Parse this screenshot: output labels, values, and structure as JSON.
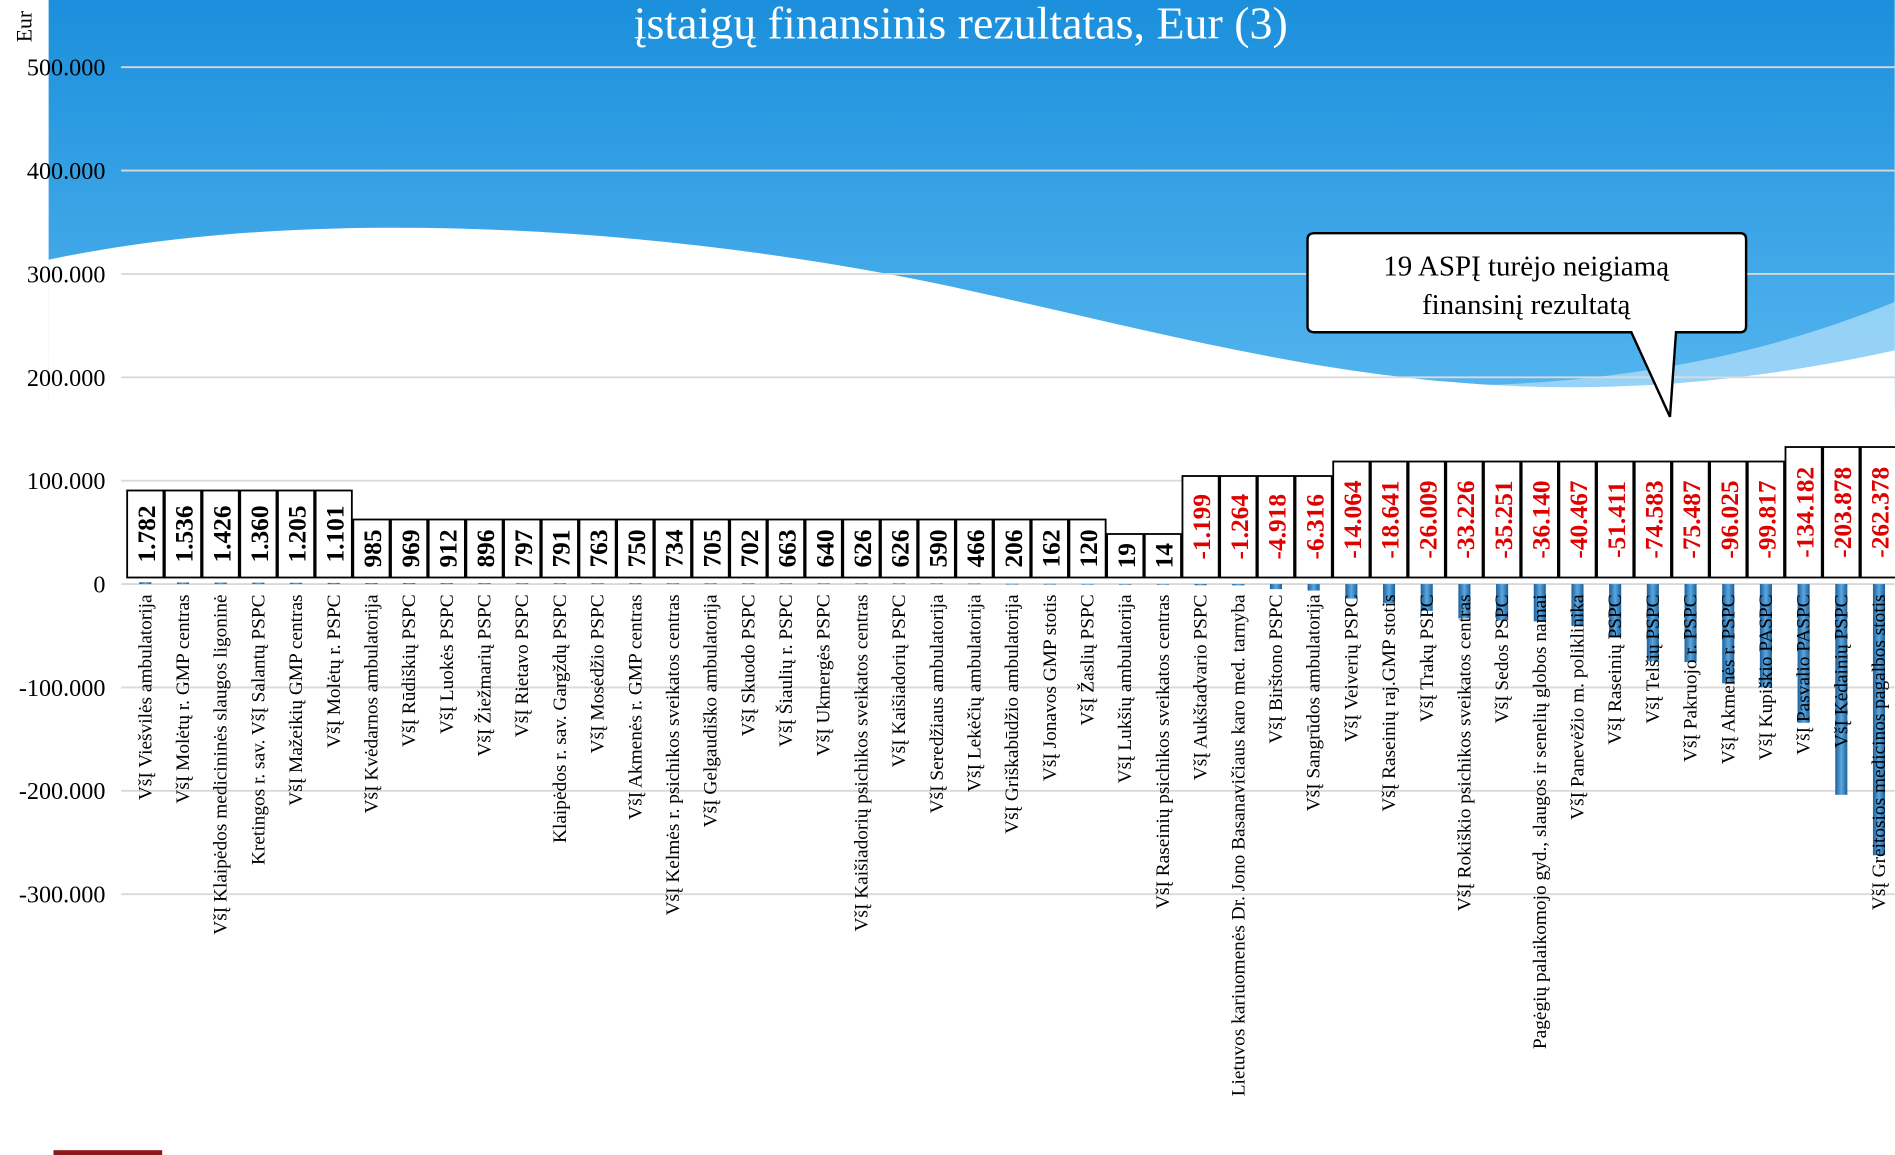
{
  "chart_data": {
    "type": "bar",
    "title": "įstaigų finansinis rezultatas, Eur (3)",
    "y_label": "Eur",
    "annotation": [
      "19 ASPĮ turėjo neigiamą",
      "finansinį rezultatą"
    ],
    "color": "#2e7bbf",
    "ylim": [
      -550000,
      565000
    ],
    "yticks": [
      {
        "value": -300000,
        "label": "-300.000"
      },
      {
        "value": -200000,
        "label": "-200.000"
      },
      {
        "value": -100000,
        "label": "-100.000"
      },
      0,
      {
        "value": 100000,
        "label": "100.000"
      },
      {
        "value": 200000,
        "label": "200.000"
      },
      {
        "value": 300000,
        "label": "300.000"
      },
      {
        "value": 400000,
        "label": "400.000"
      },
      {
        "value": 500000,
        "label": "500.000"
      }
    ],
    "grid": true,
    "categories": [
      "VšĮ Viešvilės ambulatorija",
      "VšĮ Molėtų r. GMP centras",
      "VšĮ Klaipėdos medicininės slaugos ligoninė",
      "Kretingos r. sav. VšĮ Salantų PSPC",
      "VšĮ Mažeikių GMP centras",
      "VšĮ Molėtų r. PSPC",
      "VšĮ Kvėdarnos ambulatorija",
      "VšĮ Rūdiškių PSPC",
      "VšĮ Luokės PSPC",
      "VšĮ Žiežmarių PSPC",
      "VšĮ Rietavo PSPC",
      "Klaipėdos r. sav. Gargždų PSPC",
      "VšĮ Mosėdžio PSPC",
      "VšĮ Akmenės r. GMP centras",
      "VšĮ Kelmės r. psichikos sveikatos centras",
      "VšĮ Gelgaudiško ambulatorija",
      "VšĮ Skuodo PSPC",
      "VšĮ Šiaulių r. PSPC",
      "VšĮ Ukmergės PSPC",
      "VšĮ Kaišiadorių psichikos sveikatos centras",
      "VšĮ Kaišiadorių PSPC",
      "VšĮ Seredžiaus ambulatorija",
      "VšĮ Lekėčių ambulatorija",
      "VšĮ Griškabūdžio ambulatorija",
      "VšĮ Jonavos GMP stotis",
      "VšĮ Žaslių PSPC",
      "VšĮ Lukšių ambulatorija",
      "VšĮ Raseinių psichikos sveikatos centras",
      "VšĮ Aukštadvario PSPC",
      "Lietuvos kariuomenės Dr. Jono Basanavičiaus karo med. tarnyba",
      "VšĮ Birštono PSPC",
      "VšĮ Sangrūdos ambulatorija",
      "VšĮ Veiverių PSPC",
      "VšĮ Raseinių raj.GMP stotis",
      "VšĮ Trakų PSPC",
      "VšĮ Rokiškio psichikos sveikatos centras",
      "VšĮ Sedos PSPC",
      "Pagėgių palaikomojo gyd., slaugos ir senelių globos namai",
      "VšĮ Panevėžio m. poliklinika",
      "VšĮ Raseinių PSPC",
      "VšĮ Telšių PSPC",
      "VšĮ Pakruojo r. PSPC",
      "VšĮ Akmenės r. PSPC",
      "VšĮ Kupiškio PASPC",
      "VšĮ Pasvalio PASPC",
      "VšĮ Kėdainių PSPC",
      "VšĮ Greitosios medicinos pagalbos stotis"
    ],
    "values": [
      1782,
      1536,
      1426,
      1360,
      1205,
      1101,
      985,
      969,
      912,
      896,
      797,
      791,
      763,
      750,
      734,
      705,
      702,
      663,
      640,
      626,
      626,
      590,
      466,
      206,
      162,
      120,
      19,
      14,
      -1199,
      -1264,
      -4918,
      -6316,
      -14064,
      -18641,
      -26009,
      -33226,
      -35251,
      -36140,
      -40467,
      -51411,
      -74583,
      -75487,
      -96025,
      -99817,
      -134182,
      -203878,
      -262378
    ],
    "value_labels": [
      "1.782",
      "1.536",
      "1.426",
      "1.360",
      "1.205",
      "1.101",
      "985",
      "969",
      "912",
      "896",
      "797",
      "791",
      "763",
      "750",
      "734",
      "705",
      "702",
      "663",
      "640",
      "626",
      "626",
      "590",
      "466",
      "206",
      "162",
      "120",
      "19",
      "14",
      "-1.199",
      "-1.264",
      "-4.918",
      "-6.316",
      "-14.064",
      "-18.641",
      "-26.009",
      "-33.226",
      "-35.251",
      "-36.140",
      "-40.467",
      "-51.411",
      "-74.583",
      "-75.487",
      "-96.025",
      "-99.817",
      "-134.182",
      "-203.878",
      "-262.378"
    ]
  }
}
